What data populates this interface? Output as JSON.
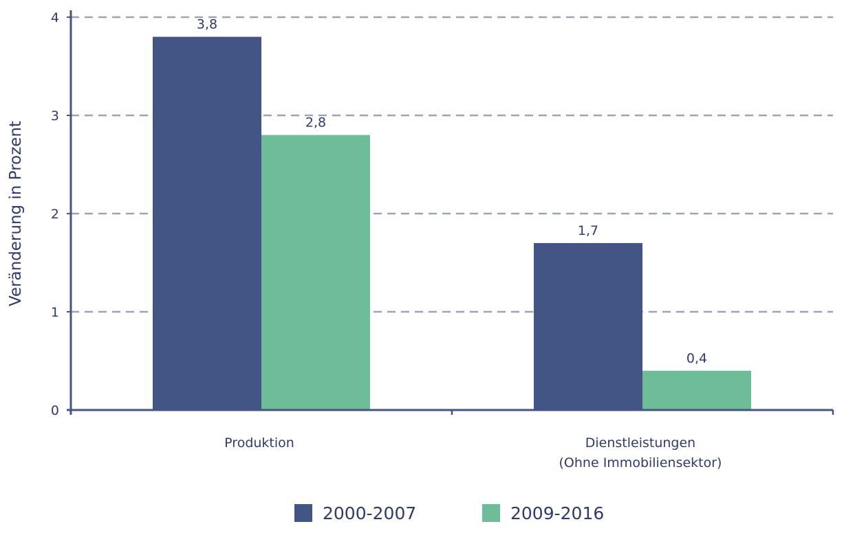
{
  "chart_data": {
    "type": "bar",
    "categories": [
      "Produktion",
      "Dienstleistungen\n(Ohne Immobiliensektor)"
    ],
    "series": [
      {
        "name": "2000-2007",
        "values": [
          3.8,
          1.7
        ],
        "labels": [
          "3,8",
          "1,7"
        ],
        "color": "#435584"
      },
      {
        "name": "2009-2016",
        "values": [
          2.8,
          0.4
        ],
        "labels": [
          "2,8",
          "0,4"
        ],
        "color": "#6fbc99"
      }
    ],
    "xlabel": "",
    "ylabel": "Veränderung in Prozent",
    "ylim": [
      0,
      4
    ],
    "yticks": [
      0,
      1,
      2,
      3,
      4
    ],
    "grid": true,
    "legend_position": "bottom-center",
    "colors": {
      "axis": "#435584",
      "grid": "#9aa3b8",
      "text": "#2f3a6e"
    }
  }
}
